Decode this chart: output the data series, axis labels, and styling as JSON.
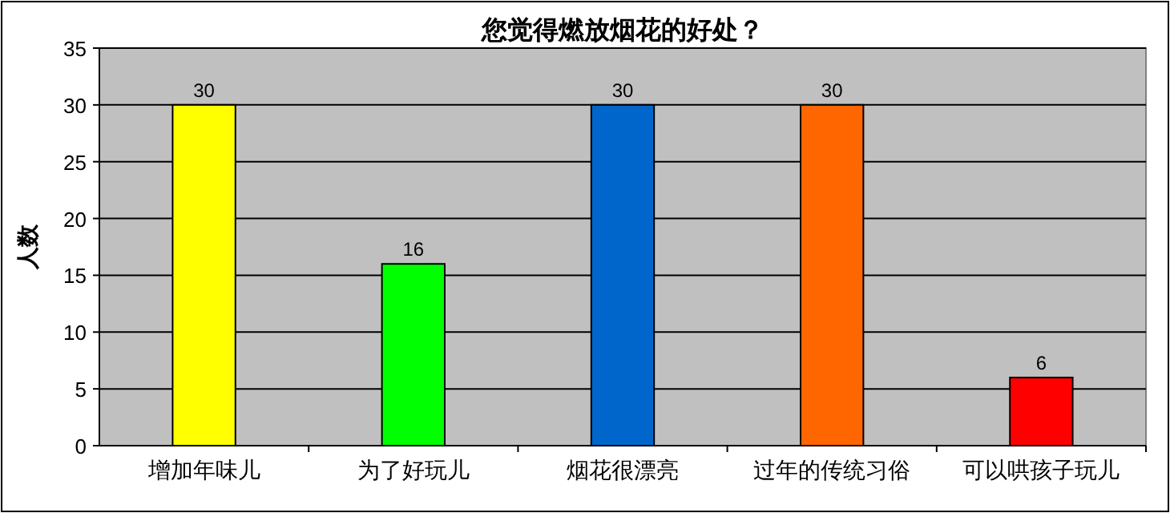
{
  "chart_data": {
    "type": "bar",
    "title": "您觉得燃放烟花的好处？",
    "ylabel": "人数",
    "categories": [
      "增加年味儿",
      "为了好玩儿",
      "烟花很漂亮",
      "过年的传统习俗",
      "可以哄孩子玩儿"
    ],
    "values": [
      30,
      16,
      30,
      30,
      6
    ],
    "colors": [
      "#ffff00",
      "#00ff00",
      "#0066cc",
      "#ff6600",
      "#ff0000"
    ],
    "ylim": [
      0,
      35
    ],
    "yticks": [
      0,
      5,
      10,
      15,
      20,
      25,
      30,
      35
    ],
    "grid": "y",
    "data_labels": true
  }
}
